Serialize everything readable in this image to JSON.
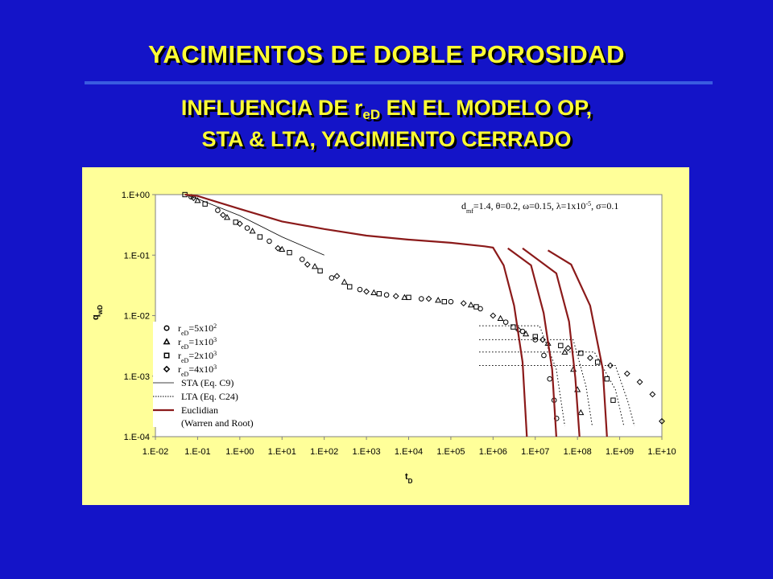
{
  "slide": {
    "title": "YACIMIENTOS DE DOBLE POROSIDAD",
    "subtitle": {
      "line1": [
        "INFLUENCIA DE r",
        "eD",
        " EN EL MODELO OP,"
      ],
      "line2": "STA & LTA, YACIMIENTO CERRADO"
    }
  },
  "chart_data": {
    "type": "scatter",
    "log_x": true,
    "log_y": true,
    "grid": false,
    "legend": "lower-left",
    "annotation": {
      "parts": [
        "d",
        "mf",
        "=1.4, θ=0.2, ω=0.15, λ=1x10",
        "-5",
        ", σ=0.1"
      ],
      "layout": [
        "normal",
        "sub",
        "normal",
        "super",
        "normal"
      ]
    },
    "xlabel": {
      "parts": [
        "t",
        "D"
      ],
      "layout": [
        "normal",
        "sub"
      ]
    },
    "ylabel": {
      "parts": [
        "q",
        "wD"
      ],
      "layout": [
        "normal",
        "sub"
      ]
    },
    "xlim": [
      0.01,
      10000000000
    ],
    "ylim": [
      0.0001,
      1
    ],
    "xticks": [
      {
        "value": 0.01,
        "label": "1.E-02"
      },
      {
        "value": 0.1,
        "label": "1.E-01"
      },
      {
        "value": 1,
        "label": "1.E+00"
      },
      {
        "value": 10,
        "label": "1.E+01"
      },
      {
        "value": 100,
        "label": "1.E+02"
      },
      {
        "value": 1000,
        "label": "1.E+03"
      },
      {
        "value": 10000,
        "label": "1.E+04"
      },
      {
        "value": 100000,
        "label": "1.E+05"
      },
      {
        "value": 1000000,
        "label": "1.E+06"
      },
      {
        "value": 10000000,
        "label": "1.E+07"
      },
      {
        "value": 100000000,
        "label": "1.E+08"
      },
      {
        "value": 1000000000,
        "label": "1.E+09"
      },
      {
        "value": 10000000000,
        "label": "1.E+10"
      }
    ],
    "yticks": [
      {
        "value": 0.0001,
        "label": "1.E-04"
      },
      {
        "value": 0.001,
        "label": "1.E-03"
      },
      {
        "value": 0.01,
        "label": "1.E-02"
      },
      {
        "value": 0.1,
        "label": "1.E-01"
      },
      {
        "value": 1,
        "label": "1.E+00"
      }
    ],
    "series": [
      {
        "name": [
          "r",
          "eD",
          "=5x10",
          "2"
        ],
        "name_layout": [
          "normal",
          "sub",
          "normal",
          "super"
        ],
        "marker": "circle",
        "color": "#000000",
        "x": [
          0.07,
          0.3,
          1.5,
          5,
          30,
          150,
          700,
          3000,
          20000,
          100000,
          500000,
          2000000,
          5000000,
          10000000,
          16000000,
          22000000,
          28000000,
          32000000
        ],
        "values": [
          0.92,
          0.55,
          0.28,
          0.17,
          0.085,
          0.042,
          0.027,
          0.022,
          0.019,
          0.017,
          0.013,
          0.0078,
          0.0055,
          0.004,
          0.0022,
          0.0009,
          0.0004,
          0.0002
        ]
      },
      {
        "name": [
          "r",
          "eD",
          "=1x10",
          "3"
        ],
        "name_layout": [
          "normal",
          "sub",
          "normal",
          "super"
        ],
        "marker": "triangle",
        "color": "#000000",
        "x": [
          0.1,
          0.5,
          2,
          10,
          60,
          300,
          1500,
          8000,
          50000,
          300000,
          1500000,
          6000000,
          20000000,
          50000000,
          80000000,
          100000000,
          120000000
        ],
        "values": [
          0.8,
          0.42,
          0.25,
          0.125,
          0.065,
          0.036,
          0.024,
          0.02,
          0.018,
          0.015,
          0.009,
          0.005,
          0.0035,
          0.0025,
          0.0013,
          0.0006,
          0.00025
        ]
      },
      {
        "name": [
          "r",
          "eD",
          "=2x10",
          "3"
        ],
        "name_layout": [
          "normal",
          "sub",
          "normal",
          "super"
        ],
        "marker": "square",
        "color": "#000000",
        "x": [
          0.05,
          0.15,
          0.8,
          3,
          15,
          80,
          400,
          2000,
          10000,
          70000,
          400000,
          3000000,
          10000000,
          40000000,
          120000000,
          300000000,
          500000000,
          700000000
        ],
        "values": [
          1,
          0.7,
          0.35,
          0.2,
          0.11,
          0.055,
          0.03,
          0.023,
          0.02,
          0.017,
          0.014,
          0.0065,
          0.0045,
          0.0032,
          0.0024,
          0.0017,
          0.0009,
          0.0004
        ]
      },
      {
        "name": [
          "r",
          "eD",
          "=4x10",
          "3"
        ],
        "name_layout": [
          "normal",
          "sub",
          "normal",
          "super"
        ],
        "marker": "diamond",
        "color": "#000000",
        "x": [
          0.08,
          0.4,
          1,
          8,
          40,
          200,
          1000,
          5000,
          30000,
          200000,
          1000000,
          4000000,
          15000000,
          60000000,
          200000000,
          600000000,
          1500000000,
          3000000000,
          6000000000,
          10000000000
        ],
        "values": [
          0.88,
          0.46,
          0.33,
          0.13,
          0.07,
          0.045,
          0.025,
          0.021,
          0.019,
          0.016,
          0.01,
          0.0058,
          0.004,
          0.0029,
          0.002,
          0.0015,
          0.0011,
          0.0008,
          0.0005,
          0.00018
        ]
      },
      {
        "name": [
          "STA (Eq. C9)"
        ],
        "name_layout": [
          "normal"
        ],
        "line": "solid",
        "width": 0.8,
        "color": "#000000",
        "x": [
          0.05,
          0.1,
          1,
          10,
          100
        ],
        "values": [
          1,
          0.85,
          0.45,
          0.2,
          0.1
        ]
      },
      {
        "name": [
          "LTA (Eq. C24)"
        ],
        "name_layout": [
          "normal"
        ],
        "line": "dotted",
        "width": 1,
        "color": "#000000",
        "x": [
          470000,
          12600000,
          31600000,
          50000000,
          null,
          470000,
          79000000,
          158000000,
          224000000,
          null,
          470000,
          251000000,
          794000000,
          1260000000,
          null,
          470000,
          794000000,
          1580000000,
          2240000000
        ],
        "values": [
          0.0068,
          0.0068,
          0.0013,
          0.00015,
          null,
          0.004,
          0.004,
          0.0007,
          0.00015,
          null,
          0.0025,
          0.0025,
          0.0006,
          0.00015,
          null,
          0.0015,
          0.0015,
          0.00037,
          0.00015
        ]
      },
      {
        "name": [
          "Euclidian",
          "(Warren and Root)"
        ],
        "name_layout": [
          "normal",
          "newline"
        ],
        "line": "solid",
        "width": 2.2,
        "color": "#8b1a1a",
        "x": [
          0.05,
          0.1,
          1,
          10,
          100,
          1000,
          10000,
          100000,
          630000,
          1000000,
          1780000,
          3160000,
          5010000,
          6310000,
          null,
          2240000,
          7940000,
          15800000,
          25100000,
          31600000,
          null,
          5010000,
          31600000,
          63100000,
          89100000,
          112000000,
          null,
          20000000,
          70800000,
          200000000,
          398000000,
          501000000
        ],
        "values": [
          1,
          0.95,
          0.58,
          0.36,
          0.27,
          0.21,
          0.18,
          0.16,
          0.14,
          0.133,
          0.068,
          0.0146,
          0.0017,
          0.0001,
          null,
          0.13,
          0.068,
          0.011,
          0.0013,
          0.0001,
          null,
          0.13,
          0.05,
          0.008,
          0.00094,
          0.0001,
          null,
          0.12,
          0.07,
          0.0146,
          0.0013,
          0.0001
        ]
      }
    ]
  }
}
